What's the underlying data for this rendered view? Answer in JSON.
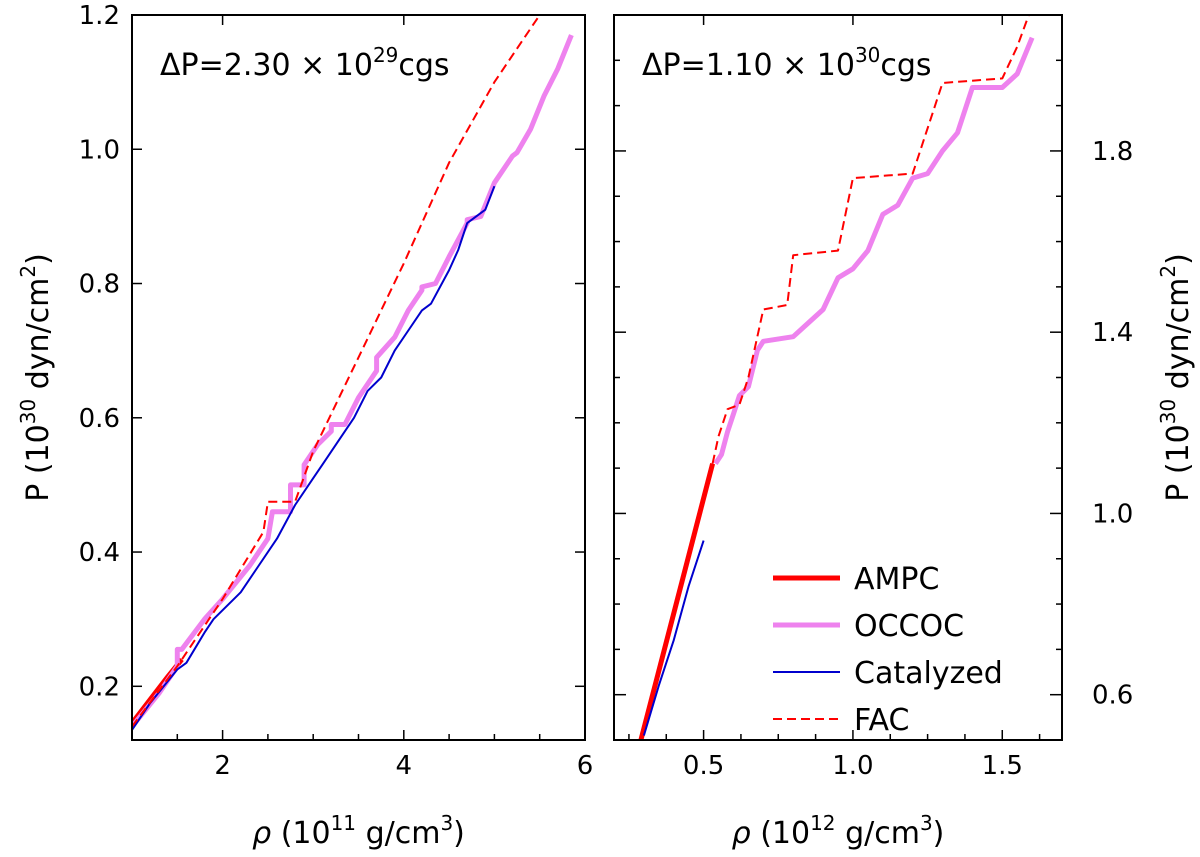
{
  "chart_data": [
    {
      "type": "line",
      "panel": "left",
      "annotation": {
        "prefix": "ΔP=2.30",
        "times": "×",
        "base": "10",
        "exp": "29",
        "unit": "cgs"
      },
      "xlabel": {
        "symbol": "ρ",
        "pre": "(10",
        "exp": "11",
        "post": " g/cm",
        "unit_exp": "3",
        "close": ")"
      },
      "ylabel": {
        "pre": "P (10",
        "exp": "30",
        "mid": " dyn/cm",
        "unit_exp": "2",
        "close": ")"
      },
      "xlim": [
        1.0,
        6.0
      ],
      "ylim": [
        0.12,
        1.2
      ],
      "xticks": [
        2,
        4,
        6
      ],
      "xtick_labels": [
        "2",
        "4",
        "6"
      ],
      "yticks": [
        0.2,
        0.4,
        0.6,
        0.8,
        1.0,
        1.2
      ],
      "ytick_labels": [
        "0.2",
        "0.4",
        "0.6",
        "0.8",
        "1.0",
        "1.2"
      ],
      "series": [
        {
          "name": "AMPC",
          "color": "#ff0000",
          "style": "solid",
          "width": 5,
          "x": [
            1.0,
            1.2,
            1.4,
            1.55
          ],
          "y": [
            0.145,
            0.18,
            0.215,
            0.24
          ]
        },
        {
          "name": "OCCOC",
          "color": "#ee82ee",
          "style": "solid",
          "width": 5,
          "x": [
            1.0,
            1.3,
            1.5,
            1.5,
            1.55,
            1.8,
            2.0,
            2.3,
            2.5,
            2.55,
            2.75,
            2.75,
            2.9,
            2.9,
            3.05,
            3.2,
            3.2,
            3.35,
            3.5,
            3.7,
            3.7,
            3.9,
            4.05,
            4.2,
            4.2,
            4.35,
            4.5,
            4.7,
            4.7,
            4.85,
            5.0,
            5.2,
            5.25,
            5.4,
            5.55,
            5.7,
            5.85
          ],
          "y": [
            0.14,
            0.19,
            0.23,
            0.255,
            0.255,
            0.3,
            0.33,
            0.38,
            0.42,
            0.46,
            0.46,
            0.5,
            0.5,
            0.53,
            0.56,
            0.58,
            0.59,
            0.59,
            0.63,
            0.67,
            0.69,
            0.72,
            0.76,
            0.79,
            0.795,
            0.8,
            0.84,
            0.89,
            0.895,
            0.9,
            0.95,
            0.99,
            0.995,
            1.03,
            1.08,
            1.12,
            1.17
          ]
        },
        {
          "name": "Catalyzed",
          "color": "#0000cd",
          "style": "solid",
          "width": 2,
          "x": [
            1.0,
            1.2,
            1.5,
            1.6,
            1.8,
            1.9,
            2.2,
            2.4,
            2.6,
            2.8,
            3.0,
            3.1,
            3.3,
            3.45,
            3.6,
            3.75,
            3.9,
            4.05,
            4.2,
            4.3,
            4.5,
            4.6,
            4.7,
            4.9,
            5.0
          ],
          "y": [
            0.135,
            0.175,
            0.225,
            0.235,
            0.28,
            0.3,
            0.34,
            0.38,
            0.42,
            0.47,
            0.51,
            0.53,
            0.57,
            0.6,
            0.64,
            0.66,
            0.7,
            0.73,
            0.76,
            0.77,
            0.82,
            0.85,
            0.89,
            0.91,
            0.945
          ]
        },
        {
          "name": "FAC",
          "color": "#ff0000",
          "style": "dashed",
          "width": 2,
          "x": [
            1.0,
            1.5,
            2.0,
            2.45,
            2.5,
            2.8,
            3.0,
            3.5,
            4.0,
            4.5,
            5.0,
            5.5
          ],
          "y": [
            0.14,
            0.23,
            0.33,
            0.43,
            0.475,
            0.475,
            0.55,
            0.69,
            0.83,
            0.98,
            1.1,
            1.2
          ]
        }
      ]
    },
    {
      "type": "line",
      "panel": "right",
      "annotation": {
        "prefix": "ΔP=1.10",
        "times": "×",
        "base": "10",
        "exp": "30",
        "unit": "cgs"
      },
      "xlabel": {
        "symbol": "ρ",
        "pre": "(10",
        "exp": "12",
        "post": " g/cm",
        "unit_exp": "3",
        "close": ")"
      },
      "ylabel": {
        "pre": "P (10",
        "exp": "30",
        "mid": " dyn/cm",
        "unit_exp": "2",
        "close": ")"
      },
      "xlim": [
        0.2,
        1.7
      ],
      "ylim": [
        0.5,
        2.1
      ],
      "xticks": [
        0.5,
        1.0,
        1.5
      ],
      "xtick_labels": [
        "0.5",
        "1.0",
        "1.5"
      ],
      "yticks": [
        0.6,
        1.0,
        1.4,
        1.8
      ],
      "ytick_labels": [
        "0.6",
        "1.0",
        "1.4",
        "1.8"
      ],
      "series": [
        {
          "name": "AMPC",
          "color": "#ff0000",
          "style": "solid",
          "width": 5,
          "x": [
            0.29,
            0.53
          ],
          "y": [
            0.5,
            1.11
          ]
        },
        {
          "name": "OCCOC",
          "color": "#ee82ee",
          "style": "solid",
          "width": 5,
          "x": [
            0.54,
            0.56,
            0.58,
            0.6,
            0.62,
            0.65,
            0.68,
            0.7,
            0.8,
            0.85,
            0.9,
            0.95,
            1.0,
            1.05,
            1.1,
            1.15,
            1.2,
            1.25,
            1.3,
            1.35,
            1.4,
            1.5,
            1.55,
            1.6
          ],
          "y": [
            1.11,
            1.13,
            1.18,
            1.22,
            1.26,
            1.28,
            1.36,
            1.38,
            1.39,
            1.42,
            1.45,
            1.52,
            1.54,
            1.58,
            1.66,
            1.68,
            1.74,
            1.75,
            1.8,
            1.84,
            1.94,
            1.94,
            1.97,
            2.05
          ]
        },
        {
          "name": "Catalyzed",
          "color": "#0000cd",
          "style": "solid",
          "width": 2,
          "x": [
            0.3,
            0.35,
            0.4,
            0.45,
            0.5
          ],
          "y": [
            0.51,
            0.62,
            0.72,
            0.84,
            0.94
          ]
        },
        {
          "name": "FAC",
          "color": "#ff0000",
          "style": "dashed",
          "width": 2,
          "x": [
            0.53,
            0.55,
            0.58,
            0.62,
            0.65,
            0.7,
            0.78,
            0.8,
            0.95,
            1.0,
            1.2,
            1.3,
            1.5,
            1.55,
            1.6
          ],
          "y": [
            1.11,
            1.17,
            1.23,
            1.24,
            1.3,
            1.45,
            1.46,
            1.57,
            1.58,
            1.74,
            1.75,
            1.95,
            1.96,
            2.03,
            2.12
          ]
        }
      ]
    }
  ],
  "legend": {
    "placement": "bottom-right of right panel",
    "entries": [
      {
        "label": "AMPC",
        "color": "#ff0000",
        "style": "solid",
        "width": 5
      },
      {
        "label": "OCCOC",
        "color": "#ee82ee",
        "style": "solid",
        "width": 5
      },
      {
        "label": "Catalyzed",
        "color": "#0000cd",
        "style": "solid",
        "width": 2
      },
      {
        "label": "FAC",
        "color": "#ff0000",
        "style": "dashed",
        "width": 2
      }
    ]
  }
}
